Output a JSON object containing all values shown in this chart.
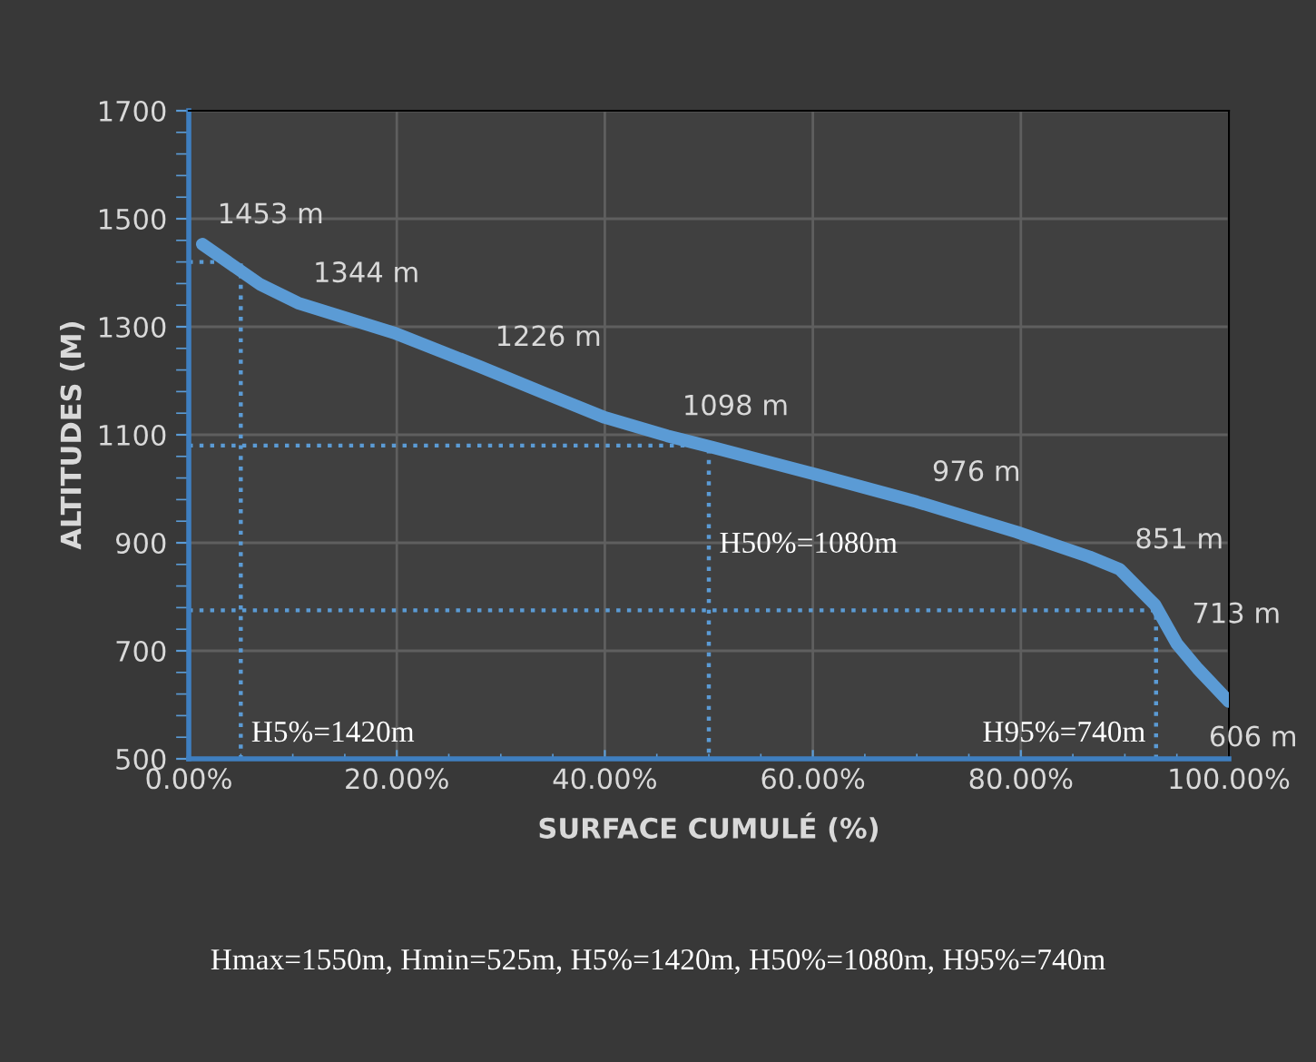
{
  "chart_data": {
    "type": "line",
    "xlabel": "SURFACE CUMULÉ (%)",
    "ylabel": "ALTITUDES (M)",
    "xlim": [
      0,
      100
    ],
    "xticks": [
      {
        "value": 0,
        "label": "0.00%"
      },
      {
        "value": 20,
        "label": "20.00%"
      },
      {
        "value": 40,
        "label": "40.00%"
      },
      {
        "value": 60,
        "label": "60.00%"
      },
      {
        "value": 80,
        "label": "80.00%"
      },
      {
        "value": 100,
        "label": "100.00%"
      }
    ],
    "ylim": [
      500,
      1700
    ],
    "yticks": [
      500,
      700,
      900,
      1100,
      1300,
      1500,
      1700
    ],
    "grid": true,
    "legend": false,
    "series": [
      {
        "color": "#5b9bd5",
        "line_style": "solid",
        "x": [
          1.3,
          6.9,
          10.5,
          19.7,
          28,
          34.2,
          40,
          46,
          50.5,
          60.4,
          70,
          79.6,
          86.6,
          89.5,
          92.9,
          95,
          97,
          100
        ],
        "values": [
          1453,
          1378,
          1344,
          1289,
          1226,
          1177,
          1132,
          1098,
          1076,
          1026,
          976,
          920,
          874,
          851,
          785,
          713,
          667,
          606
        ],
        "value_labels": [
          "1453 m",
          null,
          "1344 m",
          null,
          "1226 m",
          null,
          null,
          "1098 m",
          null,
          null,
          "976 m",
          null,
          null,
          "851 m",
          null,
          "713 m",
          null,
          "606 m"
        ]
      },
      {
        "color": "#5b9bd5",
        "line_style": "dotted",
        "x": [
          0,
          5,
          5
        ],
        "values": [
          1420,
          1420,
          500
        ]
      },
      {
        "color": "#5b9bd5",
        "line_style": "dotted",
        "x": [
          0,
          50,
          50
        ],
        "values": [
          1080,
          1080,
          500
        ]
      },
      {
        "color": "#5b9bd5",
        "line_style": "dotted",
        "x": [
          0,
          93,
          93
        ],
        "values": [
          775,
          775,
          500
        ]
      }
    ],
    "annotations": [
      {
        "text": "H5%=1420m",
        "x": 5,
        "y": 520
      },
      {
        "text": "H50%=1080m",
        "x": 50,
        "y": 870
      },
      {
        "text": "H95%=740m",
        "x": 93,
        "y": 520
      },
      "Hmax=1550m, Hmin=525m, H5%=1420m, H50%=1080m, H95%=740m"
    ]
  }
}
